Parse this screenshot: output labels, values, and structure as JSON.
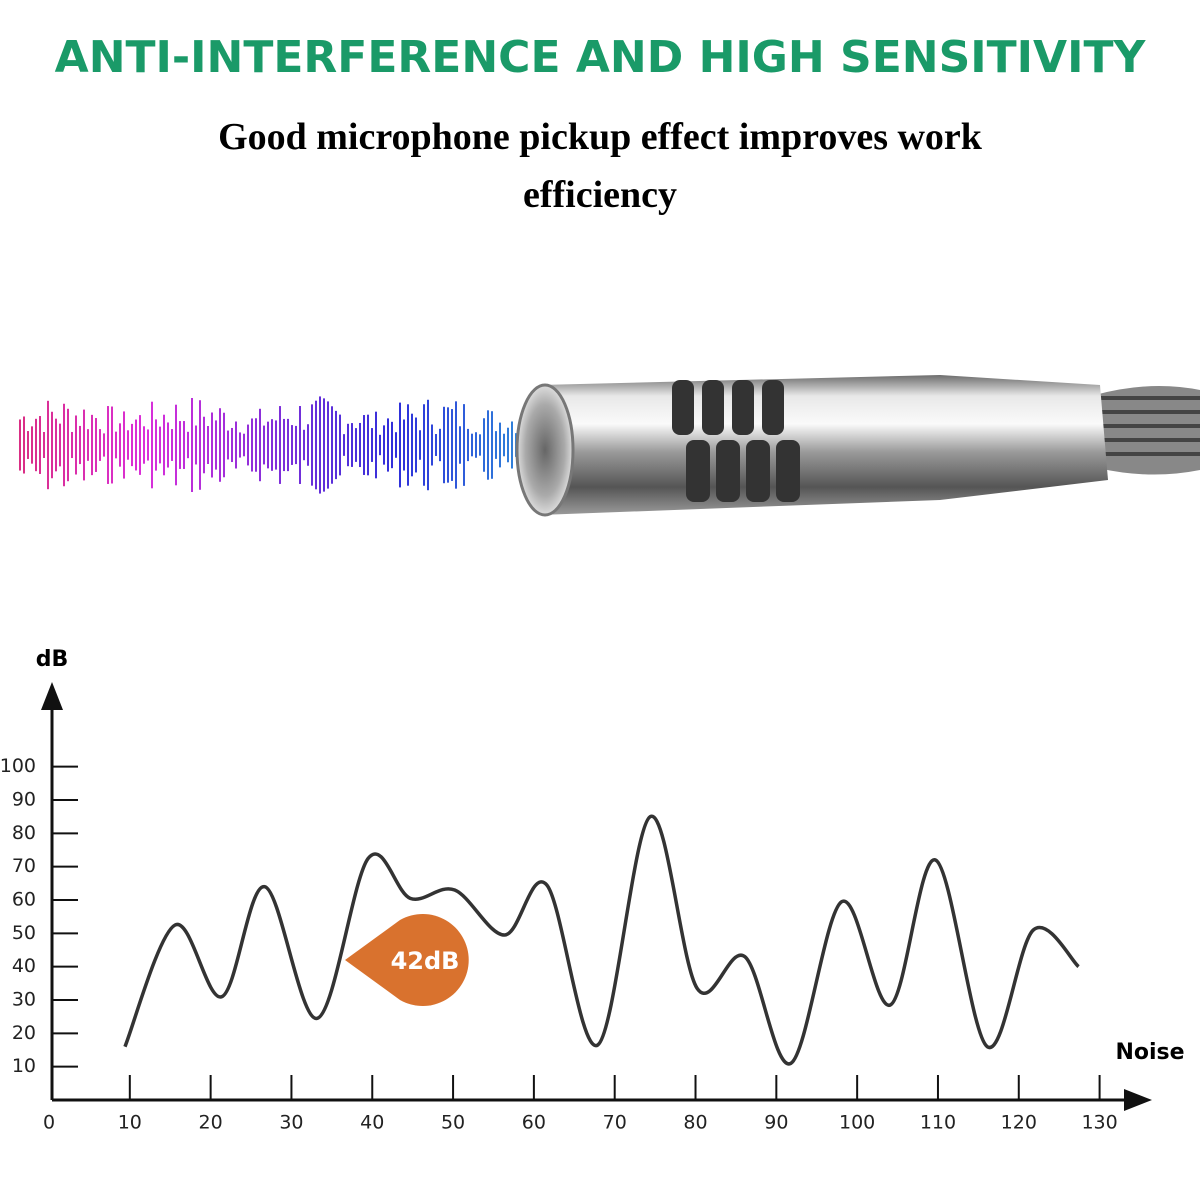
{
  "chart_data": {
    "type": "line",
    "title": "ANTI-INTERFERENCE AND HIGH SENSITIVITY",
    "subtitle": "Good microphone pickup effect improves work efficiency",
    "ylabel": "dB",
    "xlabel": "Noise",
    "annotation": "42dB",
    "color": "#333333",
    "title_color": "#1a9a68",
    "annotation_color": "#d9722e",
    "x": [
      9.4,
      15.6,
      21.4,
      26.7,
      33.2,
      39.5,
      44.7,
      50.2,
      56.4,
      61.6,
      67.9,
      74.4,
      80.2,
      86.1,
      91.8,
      98.1,
      104.1,
      109.7,
      116.1,
      121.8,
      127.4
    ],
    "values": [
      16,
      52.5,
      31,
      64,
      24.5,
      72.5,
      60.5,
      63,
      49.5,
      64.5,
      16.5,
      85,
      33.5,
      43,
      11,
      59.5,
      28.5,
      72,
      16,
      51,
      40
    ],
    "xlim": [
      0,
      135
    ],
    "ylim": [
      0,
      120
    ],
    "xticks": [
      0,
      10,
      20,
      30,
      40,
      50,
      60,
      70,
      80,
      90,
      100,
      110,
      120,
      130
    ],
    "yticks": [
      10,
      20,
      30,
      40,
      50,
      60,
      70,
      80,
      90,
      100
    ]
  }
}
